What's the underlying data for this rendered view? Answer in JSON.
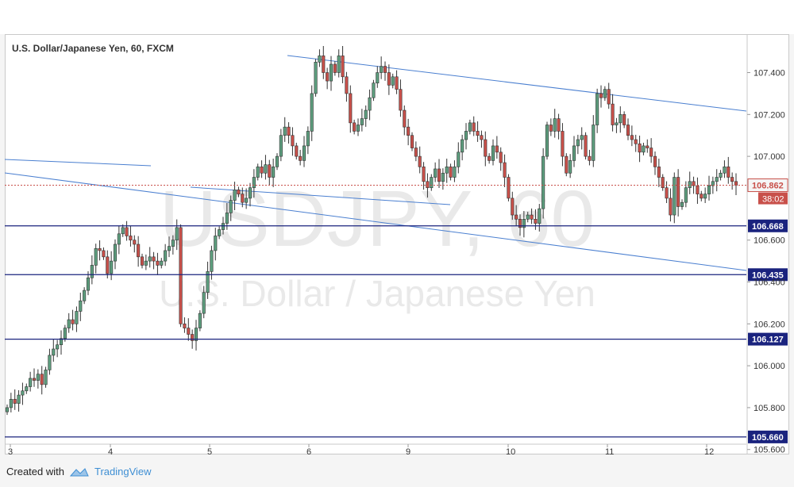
{
  "chart_data": {
    "type": "candlestick",
    "title": "U.S. Dollar/Japanese Yen, 60, FXCM",
    "watermark_symbol": "USDJPY, 60",
    "watermark_name": "U.S. Dollar / Japanese Yen",
    "ylim": [
      105.58,
      107.58
    ],
    "y_ticks": [
      {
        "value": 107.4,
        "label": "107.400"
      },
      {
        "value": 107.2,
        "label": "107.200"
      },
      {
        "value": 107.0,
        "label": "107.000"
      },
      {
        "value": 106.6,
        "label": "106.600"
      },
      {
        "value": 106.4,
        "label": "106.400"
      },
      {
        "value": 106.2,
        "label": "106.200"
      },
      {
        "value": 106.0,
        "label": "106.000"
      },
      {
        "value": 105.8,
        "label": "105.800"
      },
      {
        "value": 105.6,
        "label": "105.600"
      }
    ],
    "x_ticks": [
      "3",
      "4",
      "5",
      "6",
      "9",
      "10",
      "11",
      "12"
    ],
    "horizontal_levels": [
      {
        "value": 106.668,
        "label": "106.668"
      },
      {
        "value": 106.435,
        "label": "106.435"
      },
      {
        "value": 106.127,
        "label": "106.127"
      },
      {
        "value": 105.66,
        "label": "105.660"
      }
    ],
    "current_price": {
      "value": 106.862,
      "label": "106.862",
      "countdown": "38:02"
    },
    "colors": {
      "up": "#5d9e7e",
      "down": "#c8504a",
      "trendline": "#4a7fd0",
      "level": "#1a237e",
      "current": "#c8504a"
    },
    "candle_closes": [
      105.8,
      105.84,
      105.82,
      105.86,
      105.88,
      105.9,
      105.94,
      105.93,
      105.96,
      105.91,
      105.98,
      106.05,
      106.08,
      106.1,
      106.13,
      106.18,
      106.22,
      106.2,
      106.26,
      106.31,
      106.36,
      106.42,
      106.48,
      106.56,
      106.55,
      106.52,
      106.44,
      106.5,
      106.58,
      106.63,
      106.66,
      106.62,
      106.6,
      106.58,
      106.52,
      106.48,
      106.5,
      106.52,
      106.5,
      106.48,
      106.5,
      106.55,
      106.57,
      106.6,
      106.66,
      106.2,
      106.18,
      106.15,
      106.12,
      106.18,
      106.25,
      106.35,
      106.45,
      106.55,
      106.62,
      106.65,
      106.68,
      106.73,
      106.79,
      106.84,
      106.82,
      106.78,
      106.8,
      106.85,
      106.9,
      106.95,
      106.92,
      106.96,
      106.9,
      106.95,
      107.0,
      107.1,
      107.14,
      107.1,
      107.05,
      107.0,
      106.98,
      107.05,
      107.12,
      107.3,
      107.45,
      107.48,
      107.4,
      107.36,
      107.44,
      107.4,
      107.48,
      107.38,
      107.3,
      107.16,
      107.12,
      107.15,
      107.18,
      107.22,
      107.28,
      107.35,
      107.4,
      107.43,
      107.4,
      107.34,
      107.38,
      107.32,
      107.22,
      107.14,
      107.1,
      107.04,
      107.0,
      106.95,
      106.88,
      106.85,
      106.9,
      106.94,
      106.88,
      106.92,
      106.95,
      106.9,
      106.95,
      107.02,
      107.08,
      107.12,
      107.16,
      107.12,
      107.1,
      107.08,
      107.0,
      106.98,
      107.05,
      107.02,
      106.97,
      106.9,
      106.8,
      106.72,
      106.7,
      106.66,
      106.7,
      106.72,
      106.7,
      106.68,
      106.75,
      107.0,
      107.15,
      107.12,
      107.18,
      107.12,
      107.0,
      106.92,
      106.98,
      107.05,
      107.08,
      107.1,
      107.0,
      106.98,
      107.15,
      107.3,
      107.28,
      107.32,
      107.25,
      107.15,
      107.16,
      107.2,
      107.15,
      107.1,
      107.08,
      107.06,
      107.02,
      107.05,
      107.04,
      107.0,
      106.95,
      106.9,
      106.85,
      106.8,
      106.72,
      106.9,
      106.76,
      106.78,
      106.85,
      106.88,
      106.86,
      106.82,
      106.8,
      106.82,
      106.86,
      106.88,
      106.9,
      106.92,
      106.95,
      106.9,
      106.88,
      106.862
    ]
  },
  "footer": {
    "created_with": "Created with",
    "brand": "TradingView"
  }
}
